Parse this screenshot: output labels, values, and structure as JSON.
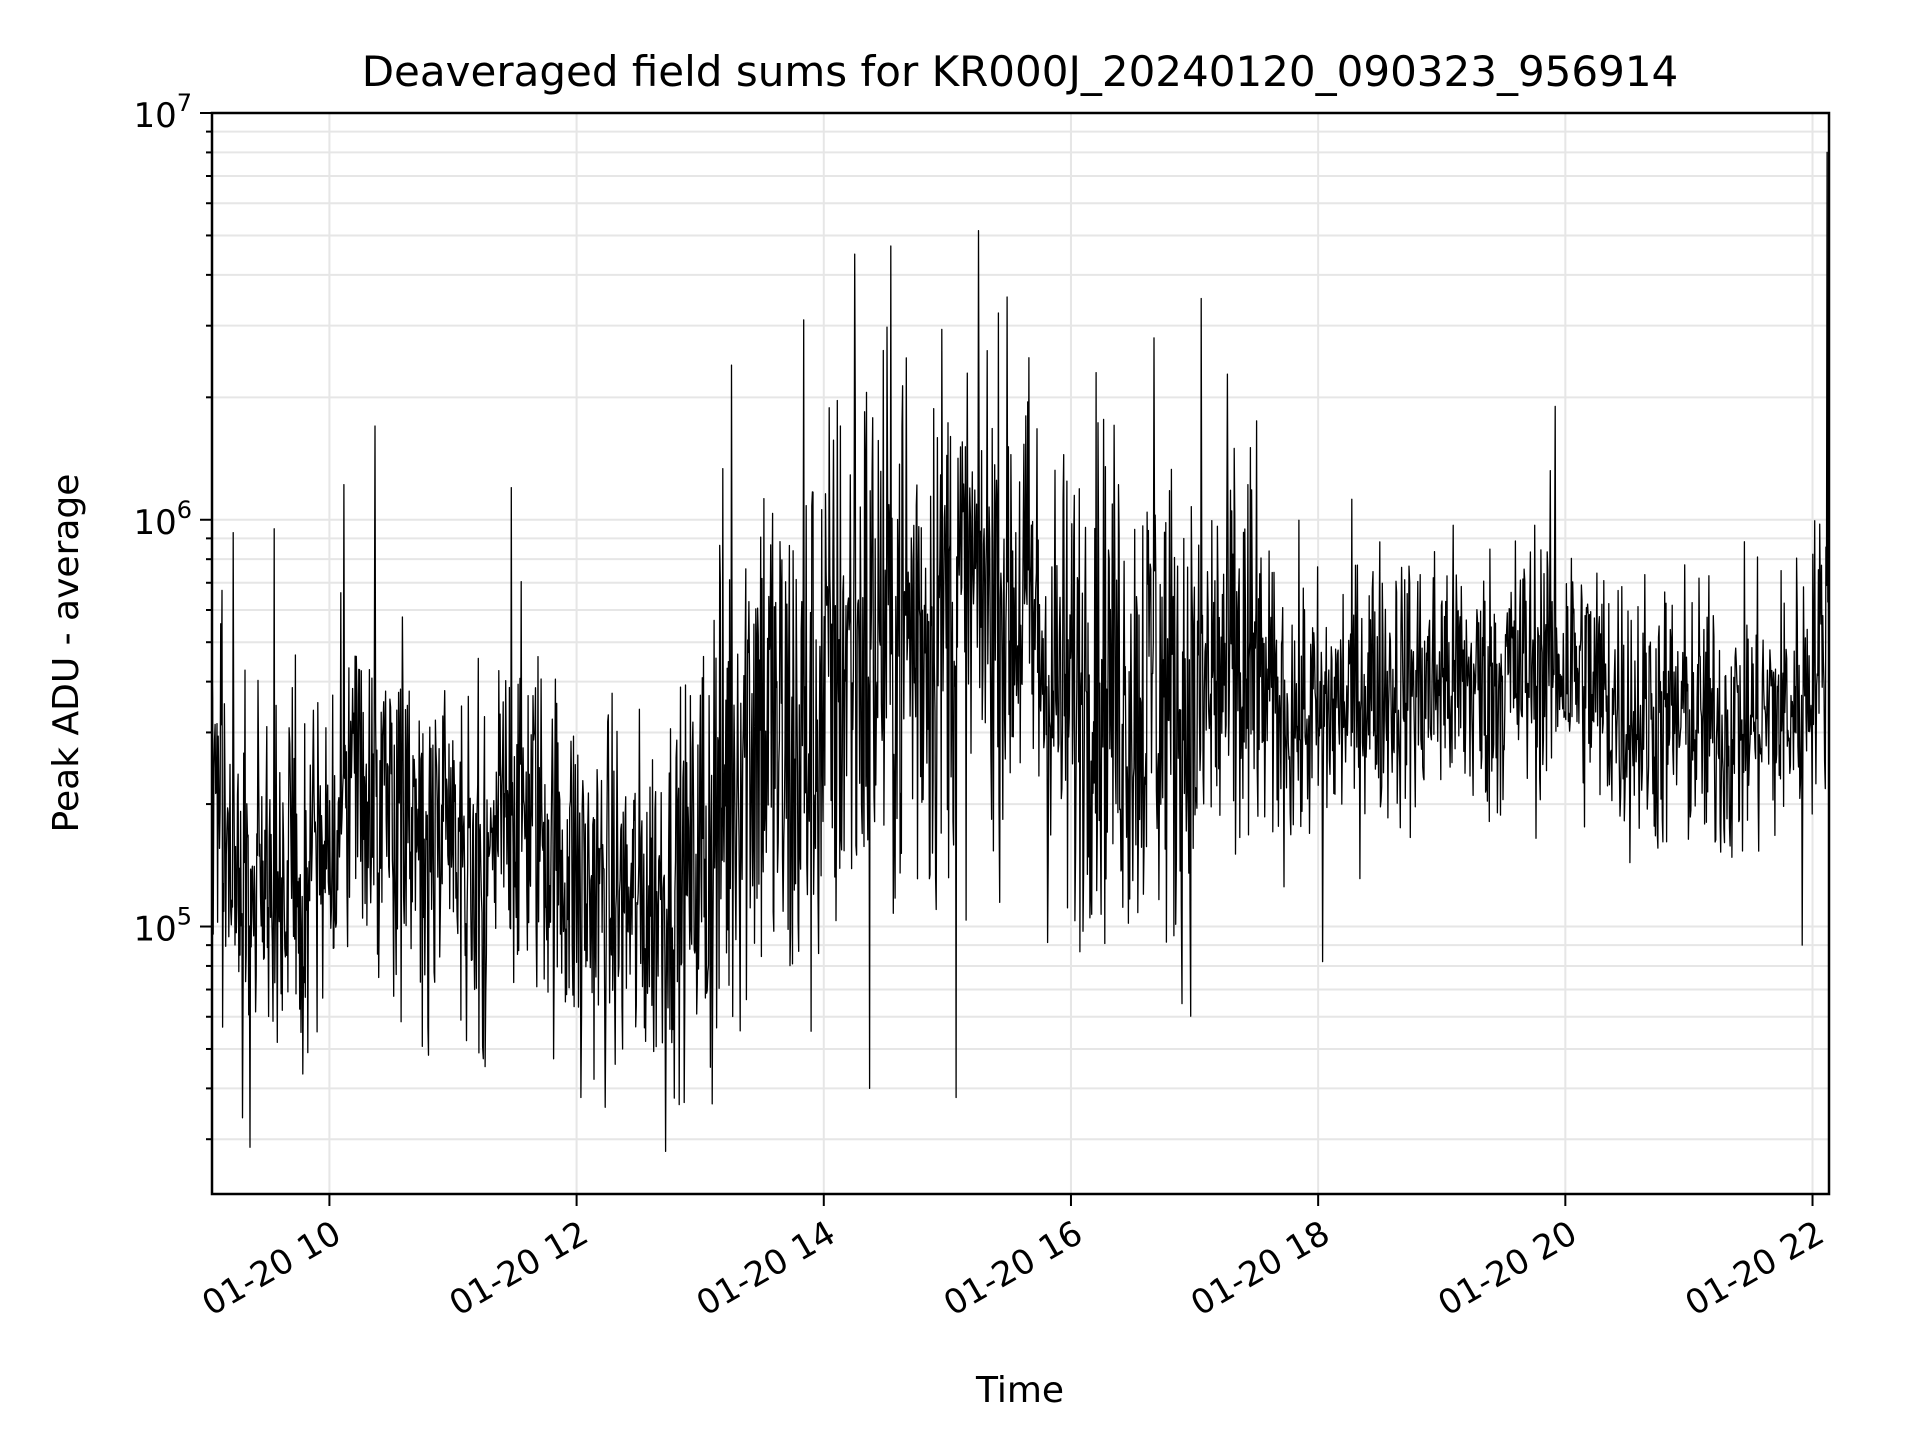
{
  "chart_data": {
    "type": "line",
    "title": "Deaveraged field sums for KR000J_20240120_090323_956914",
    "xlabel": "Time",
    "ylabel": "Peak ADU - average",
    "yscale": "log",
    "ylim": [
      22000,
      10000000
    ],
    "xlim": [
      "2024-01-20 09:03",
      "2024-01-20 22:08"
    ],
    "grid": true,
    "x_ticks": [
      "2024-01-20 10:00",
      "2024-01-20 12:00",
      "2024-01-20 14:00",
      "2024-01-20 16:00",
      "2024-01-20 18:00",
      "2024-01-20 20:00",
      "2024-01-20 22:00"
    ],
    "x_tick_labels": [
      "01-20 10",
      "01-20 12",
      "01-20 14",
      "01-20 16",
      "01-20 18",
      "01-20 20",
      "01-20 22"
    ],
    "y_ticks": [
      100000,
      1000000,
      10000000
    ],
    "y_tick_labels": [
      {
        "base": "10",
        "exp": "5"
      },
      {
        "base": "10",
        "exp": "6"
      },
      {
        "base": "10",
        "exp": "7"
      }
    ],
    "series": [
      {
        "color": "#000000",
        "x": [
          "09:03",
          "09:10",
          "09:20",
          "09:30",
          "09:40",
          "09:50",
          "10:00",
          "10:10",
          "10:20",
          "10:30",
          "10:40",
          "10:50",
          "11:00",
          "11:10",
          "11:20",
          "11:30",
          "11:40",
          "11:50",
          "12:00",
          "12:10",
          "12:20",
          "12:30",
          "12:40",
          "12:50",
          "13:00",
          "13:10",
          "13:20",
          "13:30",
          "13:40",
          "13:50",
          "14:00",
          "14:10",
          "14:20",
          "14:30",
          "14:40",
          "14:50",
          "15:00",
          "15:10",
          "15:20",
          "15:30",
          "15:40",
          "15:50",
          "16:00",
          "16:10",
          "16:20",
          "16:30",
          "16:40",
          "16:50",
          "17:00",
          "17:10",
          "17:20",
          "17:30",
          "17:40",
          "17:50",
          "18:00",
          "18:10",
          "18:20",
          "18:30",
          "18:40",
          "18:50",
          "19:00",
          "19:10",
          "19:20",
          "19:30",
          "19:40",
          "19:50",
          "20:00",
          "20:10",
          "20:20",
          "20:30",
          "20:40",
          "20:50",
          "21:00",
          "21:10",
          "21:20",
          "21:30",
          "21:40",
          "21:50",
          "22:00",
          "22:08"
        ],
        "y": [
          300000,
          150000,
          130000,
          120000,
          140000,
          130000,
          170000,
          200000,
          220000,
          200000,
          180000,
          160000,
          150000,
          140000,
          160000,
          200000,
          190000,
          150000,
          130000,
          120000,
          115000,
          110000,
          120000,
          130000,
          140000,
          200000,
          300000,
          350000,
          250000,
          260000,
          350000,
          450000,
          500000,
          550000,
          520000,
          560000,
          600000,
          650000,
          700000,
          650000,
          600000,
          400000,
          350000,
          450000,
          400000,
          350000,
          380000,
          350000,
          330000,
          400000,
          420000,
          380000,
          340000,
          330000,
          320000,
          350000,
          380000,
          400000,
          390000,
          380000,
          420000,
          400000,
          380000,
          410000,
          430000,
          450000,
          460000,
          400000,
          370000,
          340000,
          330000,
          320000,
          330000,
          310000,
          300000,
          320000,
          330000,
          340000,
          450000,
          500000
        ],
        "highlights": [
          {
            "x": "09:13",
            "y": 930000
          },
          {
            "x": "09:33",
            "y": 950000
          },
          {
            "x": "10:07",
            "y": 1220000
          },
          {
            "x": "10:22",
            "y": 1700000
          },
          {
            "x": "11:28",
            "y": 1200000
          },
          {
            "x": "12:02",
            "y": 38000
          },
          {
            "x": "12:43",
            "y": 28000
          },
          {
            "x": "13:15",
            "y": 2400000
          },
          {
            "x": "13:50",
            "y": 3100000
          },
          {
            "x": "14:15",
            "y": 4500000
          },
          {
            "x": "14:22",
            "y": 40000
          },
          {
            "x": "14:40",
            "y": 2500000
          },
          {
            "x": "15:04",
            "y": 38000
          },
          {
            "x": "15:38",
            "y": 1800000
          },
          {
            "x": "16:12",
            "y": 2300000
          },
          {
            "x": "16:40",
            "y": 2800000
          },
          {
            "x": "17:03",
            "y": 3500000
          },
          {
            "x": "17:30",
            "y": 1750000
          },
          {
            "x": "18:02",
            "y": 82000
          },
          {
            "x": "19:55",
            "y": 1900000
          },
          {
            "x": "21:55",
            "y": 90000
          },
          {
            "x": "22:07",
            "y": 8000000
          }
        ]
      }
    ]
  }
}
